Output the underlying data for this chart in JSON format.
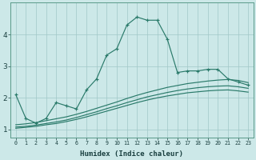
{
  "title": "",
  "xlabel": "Humidex (Indice chaleur)",
  "ylabel": "",
  "bg_color": "#cce8e8",
  "grid_color": "#a0c8c8",
  "line_color": "#2a7a6a",
  "x": [
    0,
    1,
    2,
    3,
    4,
    5,
    6,
    7,
    8,
    9,
    10,
    11,
    12,
    13,
    14,
    15,
    16,
    17,
    18,
    19,
    20,
    21,
    22,
    23
  ],
  "line1": [
    2.1,
    1.35,
    1.2,
    1.35,
    1.85,
    1.75,
    1.65,
    2.25,
    2.6,
    3.35,
    3.55,
    4.3,
    4.55,
    4.45,
    4.45,
    3.85,
    2.8,
    2.85,
    2.85,
    2.9,
    2.9,
    2.6,
    2.5,
    2.4
  ],
  "line2": [
    1.15,
    1.18,
    1.22,
    1.28,
    1.34,
    1.4,
    1.48,
    1.57,
    1.67,
    1.77,
    1.87,
    1.98,
    2.08,
    2.17,
    2.25,
    2.33,
    2.39,
    2.45,
    2.49,
    2.53,
    2.56,
    2.58,
    2.55,
    2.48
  ],
  "line3": [
    1.08,
    1.1,
    1.14,
    1.19,
    1.24,
    1.3,
    1.38,
    1.47,
    1.56,
    1.66,
    1.75,
    1.85,
    1.94,
    2.03,
    2.1,
    2.17,
    2.23,
    2.28,
    2.32,
    2.35,
    2.37,
    2.38,
    2.35,
    2.3
  ],
  "line4": [
    1.04,
    1.07,
    1.1,
    1.15,
    1.19,
    1.25,
    1.32,
    1.4,
    1.49,
    1.58,
    1.67,
    1.76,
    1.85,
    1.93,
    2.0,
    2.06,
    2.11,
    2.16,
    2.19,
    2.22,
    2.24,
    2.25,
    2.22,
    2.18
  ],
  "xlim": [
    -0.5,
    23.5
  ],
  "ylim": [
    0.75,
    5.0
  ],
  "yticks": [
    1,
    2,
    3,
    4
  ],
  "xticks": [
    0,
    1,
    2,
    3,
    4,
    5,
    6,
    7,
    8,
    9,
    10,
    11,
    12,
    13,
    14,
    15,
    16,
    17,
    18,
    19,
    20,
    21,
    22,
    23
  ]
}
